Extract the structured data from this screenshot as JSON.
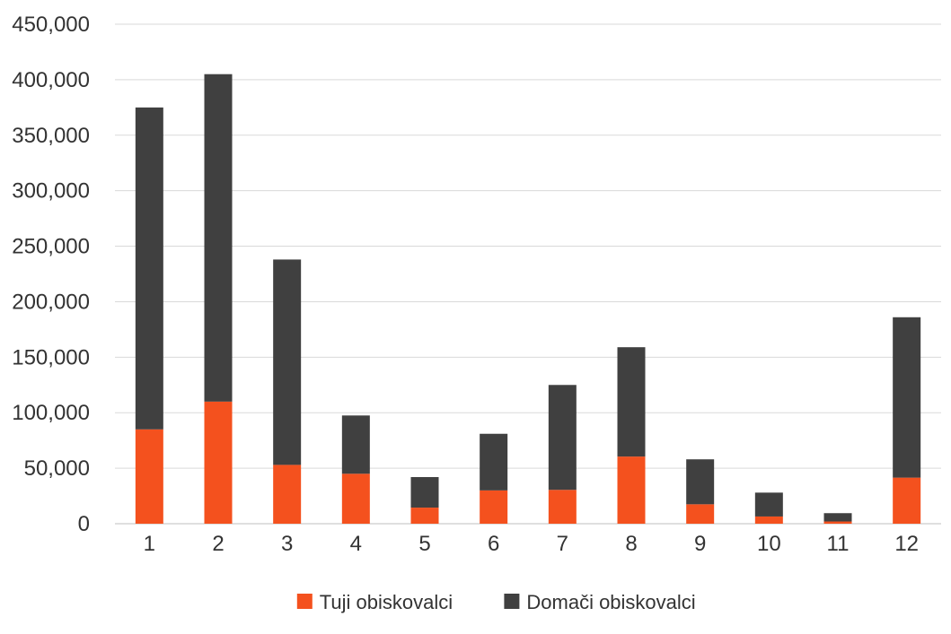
{
  "chart_data": {
    "type": "bar",
    "stacked": true,
    "title": "",
    "xlabel": "",
    "ylabel": "",
    "categories": [
      "1",
      "2",
      "3",
      "4",
      "5",
      "6",
      "7",
      "8",
      "9",
      "10",
      "11",
      "12"
    ],
    "series": [
      {
        "name": "Tuji obiskovalci",
        "color": "#f4511e",
        "values": [
          85000,
          110000,
          53000,
          45000,
          14500,
          30000,
          30500,
          60500,
          17500,
          6500,
          2000,
          41500
        ]
      },
      {
        "name": "Domači obiskovalci",
        "color": "#404040",
        "values": [
          290000,
          295000,
          185000,
          52500,
          27500,
          51000,
          94500,
          98500,
          40500,
          21500,
          7500,
          144500
        ]
      }
    ],
    "ylim": [
      0,
      450000
    ],
    "yticks": [
      "0",
      "50,000",
      "100,000",
      "150,000",
      "200,000",
      "250,000",
      "300,000",
      "350,000",
      "400,000",
      "450,000"
    ],
    "grid": true,
    "legend_position": "bottom"
  }
}
